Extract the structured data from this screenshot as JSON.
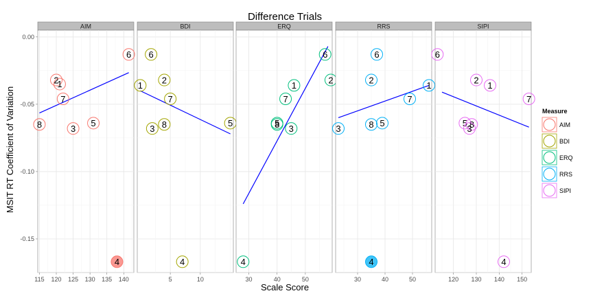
{
  "chart_data": {
    "type": "scatter",
    "title": "Difference Trials",
    "xlabel": "Scale Score",
    "ylabel": "MSIT RT Coefficient of Variation",
    "ylim": [
      -0.175,
      0.005
    ],
    "y_ticks": [
      0.0,
      -0.05,
      -0.1,
      -0.15
    ],
    "y_tick_labels": [
      "0.00",
      "-0.05",
      "-0.10",
      "-0.15"
    ],
    "grid": true,
    "legend": {
      "title": "Measure",
      "position": "right",
      "items": [
        {
          "name": "AIM",
          "color": "#F8766D"
        },
        {
          "name": "BDI",
          "color": "#A3A500"
        },
        {
          "name": "ERQ",
          "color": "#00BF7D"
        },
        {
          "name": "RRS",
          "color": "#00B0F6"
        },
        {
          "name": "SIPI",
          "color": "#E76BF3"
        }
      ]
    },
    "panels": [
      {
        "name": "AIM",
        "color": "#F8766D",
        "xlim": [
          114.5,
          143
        ],
        "x_ticks": [
          115,
          120,
          125,
          130,
          135,
          140
        ],
        "x_tick_labels": [
          "115",
          "120",
          "125",
          "130",
          "135",
          "140"
        ],
        "points": [
          {
            "label": "6",
            "x": 141.5,
            "y": -0.013
          },
          {
            "label": "2",
            "x": 120,
            "y": -0.032
          },
          {
            "label": "1",
            "x": 121,
            "y": -0.035
          },
          {
            "label": "7",
            "x": 122,
            "y": -0.046
          },
          {
            "label": "8",
            "x": 115,
            "y": -0.065
          },
          {
            "label": "3",
            "x": 125,
            "y": -0.068
          },
          {
            "label": "5",
            "x": 131,
            "y": -0.064
          },
          {
            "label": "4",
            "x": 138,
            "y": -0.167,
            "highlight": true
          }
        ],
        "fit": {
          "x": [
            115,
            141.5
          ],
          "y": [
            -0.0565,
            -0.0265
          ]
        }
      },
      {
        "name": "BDI",
        "color": "#A3A500",
        "xlim": [
          -0.5,
          15.5
        ],
        "x_ticks": [
          5,
          10
        ],
        "x_tick_labels": [
          "5",
          "10"
        ],
        "points": [
          {
            "label": "6",
            "x": 1.8,
            "y": -0.013
          },
          {
            "label": "2",
            "x": 4,
            "y": -0.032
          },
          {
            "label": "1",
            "x": 0,
            "y": -0.036
          },
          {
            "label": "7",
            "x": 5,
            "y": -0.046
          },
          {
            "label": "3",
            "x": 2,
            "y": -0.068
          },
          {
            "label": "8",
            "x": 4,
            "y": -0.065
          },
          {
            "label": "5",
            "x": 15,
            "y": -0.064
          },
          {
            "label": "4",
            "x": 7,
            "y": -0.167
          }
        ],
        "fit": {
          "x": [
            0,
            15
          ],
          "y": [
            -0.04,
            -0.072
          ]
        }
      },
      {
        "name": "ERQ",
        "color": "#00BF7D",
        "xlim": [
          25.5,
          59.5
        ],
        "x_ticks": [
          30,
          40,
          50
        ],
        "x_tick_labels": [
          "30",
          "40",
          "50"
        ],
        "points": [
          {
            "label": "6",
            "x": 57,
            "y": -0.013
          },
          {
            "label": "2",
            "x": 59,
            "y": -0.032
          },
          {
            "label": "1",
            "x": 46,
            "y": -0.036
          },
          {
            "label": "7",
            "x": 43,
            "y": -0.046
          },
          {
            "label": "5",
            "x": 40,
            "y": -0.064
          },
          {
            "label": "8",
            "x": 40,
            "y": -0.065
          },
          {
            "label": "3",
            "x": 45,
            "y": -0.068
          },
          {
            "label": "4",
            "x": 28,
            "y": -0.167
          }
        ],
        "fit": {
          "x": [
            28,
            58
          ],
          "y": [
            -0.124,
            -0.007
          ]
        }
      },
      {
        "name": "RRS",
        "color": "#00B0F6",
        "xlim": [
          22,
          57
        ],
        "x_ticks": [
          30,
          40,
          50
        ],
        "x_tick_labels": [
          "30",
          "40",
          "50"
        ],
        "points": [
          {
            "label": "6",
            "x": 37,
            "y": -0.013
          },
          {
            "label": "2",
            "x": 35,
            "y": -0.032
          },
          {
            "label": "1",
            "x": 56,
            "y": -0.036
          },
          {
            "label": "7",
            "x": 49,
            "y": -0.046
          },
          {
            "label": "8",
            "x": 35,
            "y": -0.065
          },
          {
            "label": "5",
            "x": 39,
            "y": -0.064
          },
          {
            "label": "3",
            "x": 23,
            "y": -0.068
          },
          {
            "label": "4",
            "x": 35,
            "y": -0.167,
            "highlight": true
          }
        ],
        "fit": {
          "x": [
            23,
            56
          ],
          "y": [
            -0.06,
            -0.036
          ]
        }
      },
      {
        "name": "SIPI",
        "color": "#E76BF3",
        "xlim": [
          112,
          154
        ],
        "x_ticks": [
          120,
          130,
          140,
          150
        ],
        "x_tick_labels": [
          "120",
          "130",
          "140",
          "150"
        ],
        "points": [
          {
            "label": "6",
            "x": 113,
            "y": -0.013
          },
          {
            "label": "2",
            "x": 130,
            "y": -0.032
          },
          {
            "label": "1",
            "x": 136,
            "y": -0.036
          },
          {
            "label": "7",
            "x": 153,
            "y": -0.046
          },
          {
            "label": "5",
            "x": 125,
            "y": -0.064
          },
          {
            "label": "8",
            "x": 128,
            "y": -0.065
          },
          {
            "label": "3",
            "x": 127,
            "y": -0.068
          },
          {
            "label": "4",
            "x": 142,
            "y": -0.167
          }
        ],
        "fit": {
          "x": [
            115,
            153
          ],
          "y": [
            -0.041,
            -0.067
          ]
        }
      }
    ]
  }
}
